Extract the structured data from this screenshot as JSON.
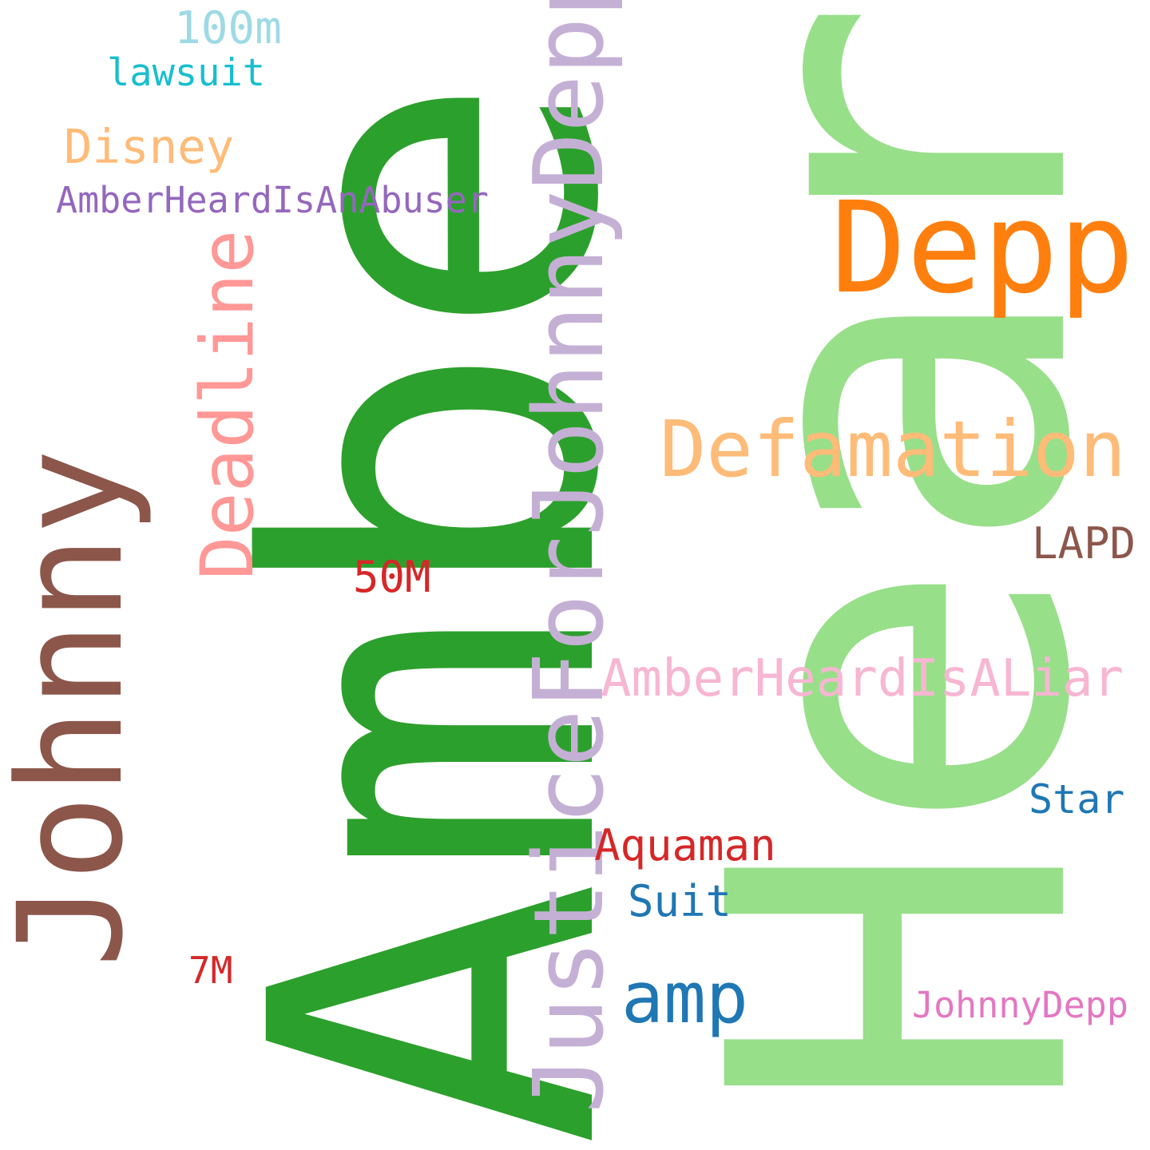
{
  "words": [
    {
      "key": "amber",
      "text": "Amber",
      "color": "#2ca02c",
      "orientation": "vertical"
    },
    {
      "key": "heard",
      "text": "Heard",
      "color": "#98df8a",
      "orientation": "vertical"
    },
    {
      "key": "depp",
      "text": "Depp",
      "color": "#ff7f0e",
      "orientation": "horizontal"
    },
    {
      "key": "johnny",
      "text": "Johnny",
      "color": "#8c564b",
      "orientation": "vertical"
    },
    {
      "key": "justice",
      "text": "JusticeForJohnnyDepp",
      "color": "#c5b0d5",
      "orientation": "vertical"
    },
    {
      "key": "defamation",
      "text": "Defamation",
      "color": "#ffbb78",
      "orientation": "horizontal"
    },
    {
      "key": "deadline",
      "text": "Deadline",
      "color": "#ff9896",
      "orientation": "vertical"
    },
    {
      "key": "liar",
      "text": "AmberHeardIsALiar",
      "color": "#f7b6d2",
      "orientation": "horizontal"
    },
    {
      "key": "amp",
      "text": "amp",
      "color": "#1f77b4",
      "orientation": "horizontal"
    },
    {
      "key": "abuser",
      "text": "AmberHeardIsAnAbuser",
      "color": "#9467bd",
      "orientation": "horizontal"
    },
    {
      "key": "disney",
      "text": "Disney",
      "color": "#ffbb78",
      "orientation": "horizontal"
    },
    {
      "key": "m100",
      "text": "100m",
      "color": "#9edae5",
      "orientation": "horizontal"
    },
    {
      "key": "lawsuit",
      "text": "lawsuit",
      "color": "#17becf",
      "orientation": "horizontal"
    },
    {
      "key": "m50",
      "text": "50M",
      "color": "#d62728",
      "orientation": "horizontal"
    },
    {
      "key": "lapd",
      "text": "LAPD",
      "color": "#8c564b",
      "orientation": "horizontal"
    },
    {
      "key": "aquaman",
      "text": "Aquaman",
      "color": "#d62728",
      "orientation": "horizontal"
    },
    {
      "key": "suit",
      "text": "Suit",
      "color": "#1f77b4",
      "orientation": "horizontal"
    },
    {
      "key": "star",
      "text": "Star",
      "color": "#1f77b4",
      "orientation": "horizontal"
    },
    {
      "key": "m7",
      "text": "7M",
      "color": "#d62728",
      "orientation": "horizontal"
    },
    {
      "key": "johnnydepp",
      "text": "JohnnyDepp",
      "color": "#e377c2",
      "orientation": "horizontal"
    }
  ]
}
